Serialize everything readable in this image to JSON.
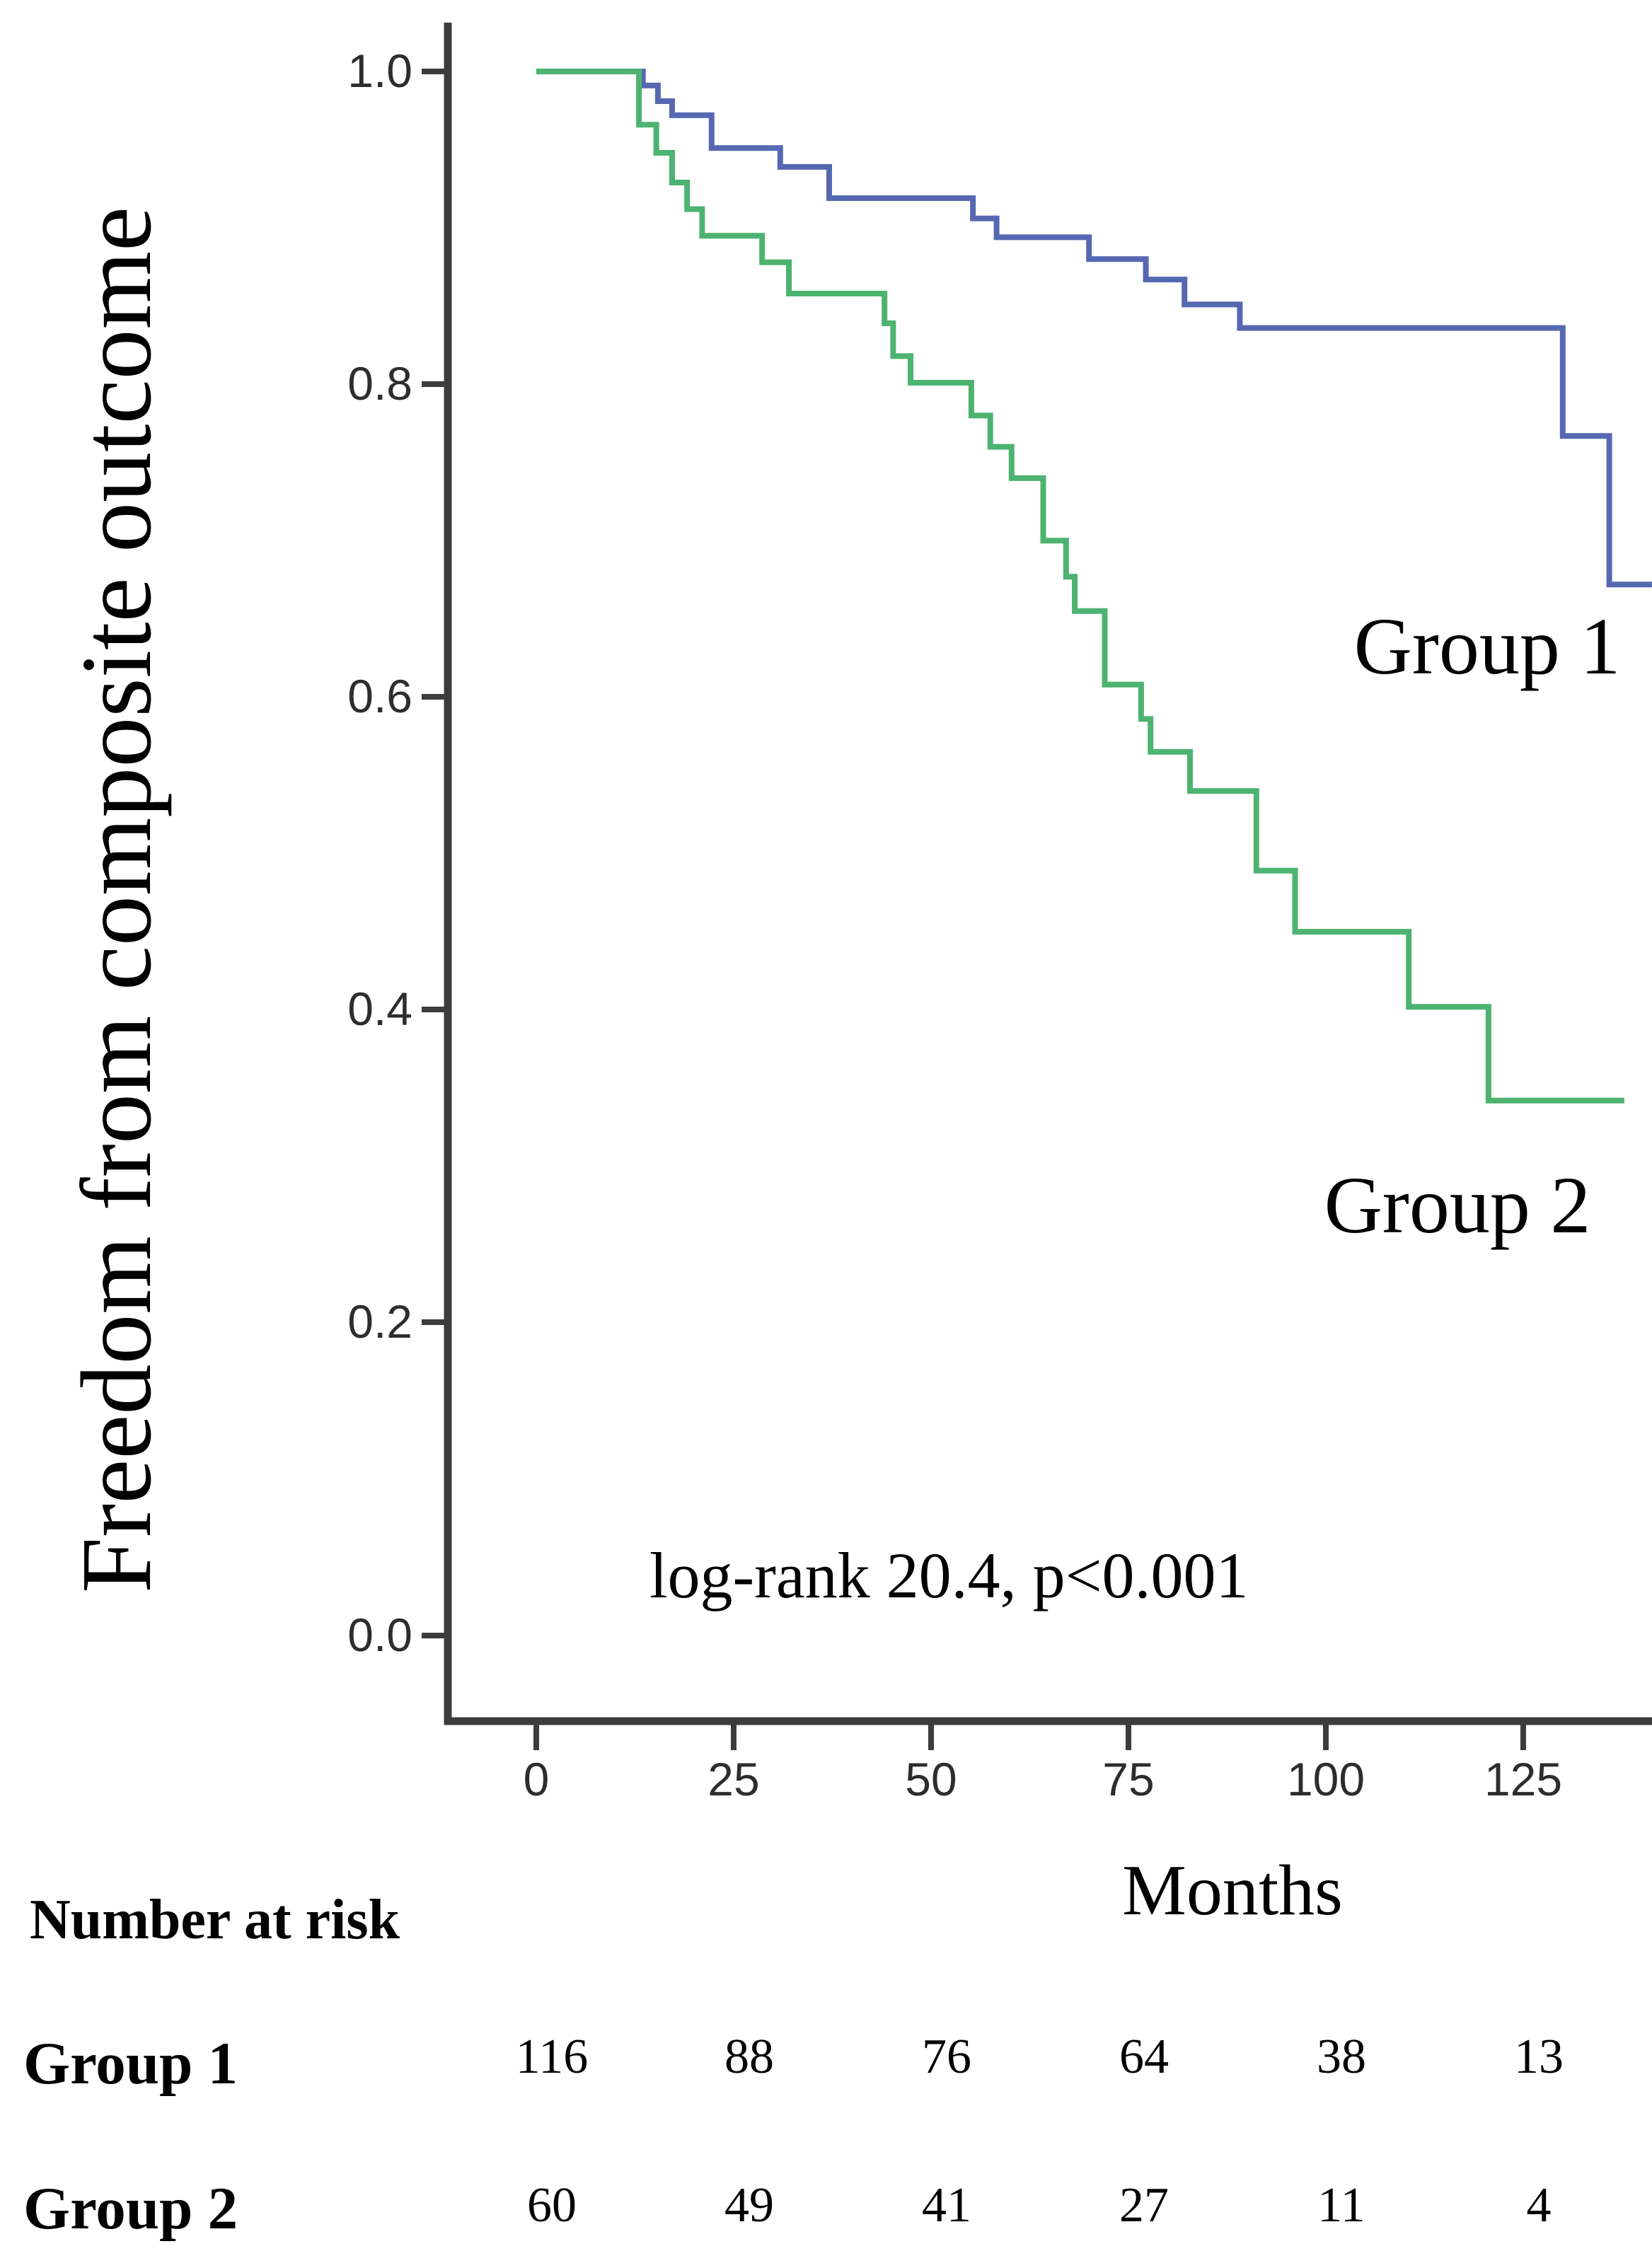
{
  "figure": {
    "y_axis_title": "Freedom from composite outcome",
    "x_axis_title": "Months",
    "annotation": "log-rank 20.4, p<0.001"
  },
  "chart_data": {
    "type": "line",
    "subtype": "kaplan-meier-step",
    "title": "",
    "xlabel": "Months",
    "ylabel": "Freedom from composite outcome",
    "x_ticks": [
      0,
      25,
      50,
      75,
      100,
      125
    ],
    "x_tick_labels": [
      "0",
      "25",
      "50",
      "75",
      "100",
      "125"
    ],
    "y_ticks": [
      1.0,
      0.8,
      0.6,
      0.4,
      0.2,
      0.0
    ],
    "y_tick_labels": [
      "1.0",
      "0.8",
      "0.6",
      "0.4",
      "0.2",
      "0.0"
    ],
    "xlim": [
      0,
      141
    ],
    "ylim": [
      0.0,
      1.0
    ],
    "grid": false,
    "legend_position": "labels-at-line-ends",
    "annotation": "log-rank 20.4, p<0.001",
    "series": [
      {
        "name": "Group 1",
        "color": "#5668b1",
        "end_time": 141.3,
        "points": [
          [
            0,
            1.0
          ],
          [
            13.5,
            0.991
          ],
          [
            15.4,
            0.981
          ],
          [
            17.2,
            0.972
          ],
          [
            22.2,
            0.951
          ],
          [
            30.9,
            0.939
          ],
          [
            37.1,
            0.919
          ],
          [
            55.3,
            0.906
          ],
          [
            58.3,
            0.894
          ],
          [
            70.0,
            0.88
          ],
          [
            77.2,
            0.867
          ],
          [
            82.1,
            0.851
          ],
          [
            89.1,
            0.836
          ],
          [
            130.0,
            0.767
          ],
          [
            135.9,
            0.672
          ]
        ]
      },
      {
        "name": "Group 2",
        "color": "#4db370",
        "end_time": 137.8,
        "points": [
          [
            0,
            1.0
          ],
          [
            13.0,
            0.966
          ],
          [
            15.2,
            0.948
          ],
          [
            17.2,
            0.929
          ],
          [
            19.1,
            0.912
          ],
          [
            21.0,
            0.895
          ],
          [
            28.6,
            0.878
          ],
          [
            32.0,
            0.858
          ],
          [
            44.1,
            0.839
          ],
          [
            45.2,
            0.818
          ],
          [
            47.4,
            0.801
          ],
          [
            55.1,
            0.78
          ],
          [
            57.5,
            0.76
          ],
          [
            60.2,
            0.74
          ],
          [
            64.2,
            0.7
          ],
          [
            67.1,
            0.677
          ],
          [
            68.2,
            0.655
          ],
          [
            72.0,
            0.608
          ],
          [
            76.6,
            0.586
          ],
          [
            77.8,
            0.565
          ],
          [
            82.8,
            0.54
          ],
          [
            91.2,
            0.489
          ],
          [
            96.1,
            0.45
          ],
          [
            110.5,
            0.402
          ],
          [
            120.6,
            0.342
          ]
        ]
      }
    ],
    "number_at_risk": {
      "header": "Number at risk",
      "times": [
        0,
        25,
        50,
        75,
        100,
        125
      ],
      "rows": [
        {
          "label": "Group 1",
          "values": [
            116,
            88,
            76,
            64,
            38,
            13
          ]
        },
        {
          "label": "Group 2",
          "values": [
            60,
            49,
            41,
            27,
            11,
            4
          ]
        }
      ]
    }
  }
}
